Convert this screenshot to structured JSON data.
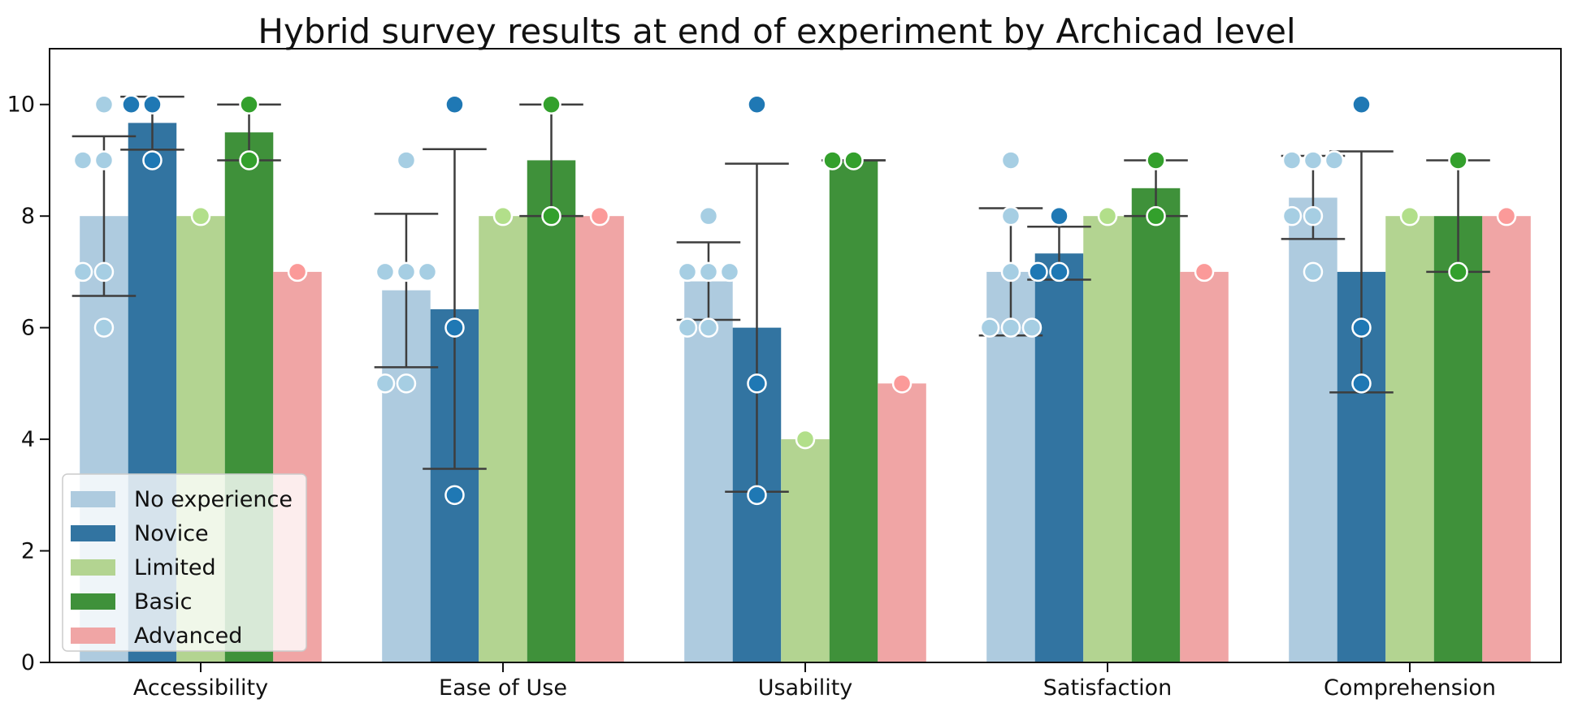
{
  "chart_data": {
    "type": "bar",
    "title": "Hybrid survey results at end of experiment by Archicad level",
    "xlabel": "",
    "ylabel": "",
    "ylim": [
      0,
      11
    ],
    "yticks": [
      0,
      2,
      4,
      6,
      8,
      10
    ],
    "categories": [
      "Accessibility",
      "Ease of Use",
      "Usability",
      "Satisfaction",
      "Comprehension"
    ],
    "legend_position": "lower-left",
    "grid": false,
    "series": [
      {
        "name": "No experience",
        "color": "#aecbdf",
        "point_color": "#a6cee3",
        "values": [
          8.0,
          6.67,
          6.83,
          7.0,
          8.33
        ],
        "error": [
          [
            6.57,
            9.43
          ],
          [
            5.29,
            8.04
          ],
          [
            6.14,
            7.53
          ],
          [
            5.86,
            8.14
          ],
          [
            7.59,
            9.08
          ]
        ],
        "points": [
          [
            10,
            9,
            9,
            7,
            7,
            6
          ],
          [
            9,
            7,
            7,
            7,
            5,
            5
          ],
          [
            8,
            7,
            7,
            7,
            6,
            6
          ],
          [
            9,
            8,
            7,
            6,
            6,
            6
          ],
          [
            9,
            9,
            9,
            8,
            8,
            7
          ]
        ]
      },
      {
        "name": "Novice",
        "color": "#3274a1",
        "point_color": "#1f78b4",
        "values": [
          9.67,
          6.33,
          6.0,
          7.33,
          7.0
        ],
        "error": [
          [
            9.19,
            10.14
          ],
          [
            3.47,
            9.2
          ],
          [
            3.06,
            8.94
          ],
          [
            6.86,
            7.81
          ],
          [
            4.84,
            9.16
          ]
        ],
        "points": [
          [
            10,
            10,
            9
          ],
          [
            10,
            6,
            3
          ],
          [
            10,
            5,
            3
          ],
          [
            8,
            7,
            7
          ],
          [
            10,
            6,
            5
          ]
        ]
      },
      {
        "name": "Limited",
        "color": "#b3d491",
        "point_color": "#b2df8a",
        "values": [
          8,
          8,
          4,
          8,
          8
        ],
        "error": null,
        "points": [
          [
            8
          ],
          [
            8
          ],
          [
            4
          ],
          [
            8
          ],
          [
            8
          ]
        ]
      },
      {
        "name": "Basic",
        "color": "#3f913a",
        "point_color": "#33a02c",
        "values": [
          9.5,
          9.0,
          9.0,
          8.5,
          8.0
        ],
        "error": [
          [
            9.0,
            10.0
          ],
          [
            8.0,
            10.0
          ],
          [
            9.0,
            9.0
          ],
          [
            8.0,
            9.0
          ],
          [
            7.0,
            9.0
          ]
        ],
        "points": [
          [
            10,
            9
          ],
          [
            10,
            8
          ],
          [
            9,
            9
          ],
          [
            9,
            8
          ],
          [
            9,
            7
          ]
        ]
      },
      {
        "name": "Advanced",
        "color": "#f0a5a5",
        "point_color": "#fb9a99",
        "values": [
          7,
          8,
          5,
          7,
          8
        ],
        "error": null,
        "points": [
          [
            7
          ],
          [
            8
          ],
          [
            5
          ],
          [
            7
          ],
          [
            8
          ]
        ]
      }
    ]
  }
}
